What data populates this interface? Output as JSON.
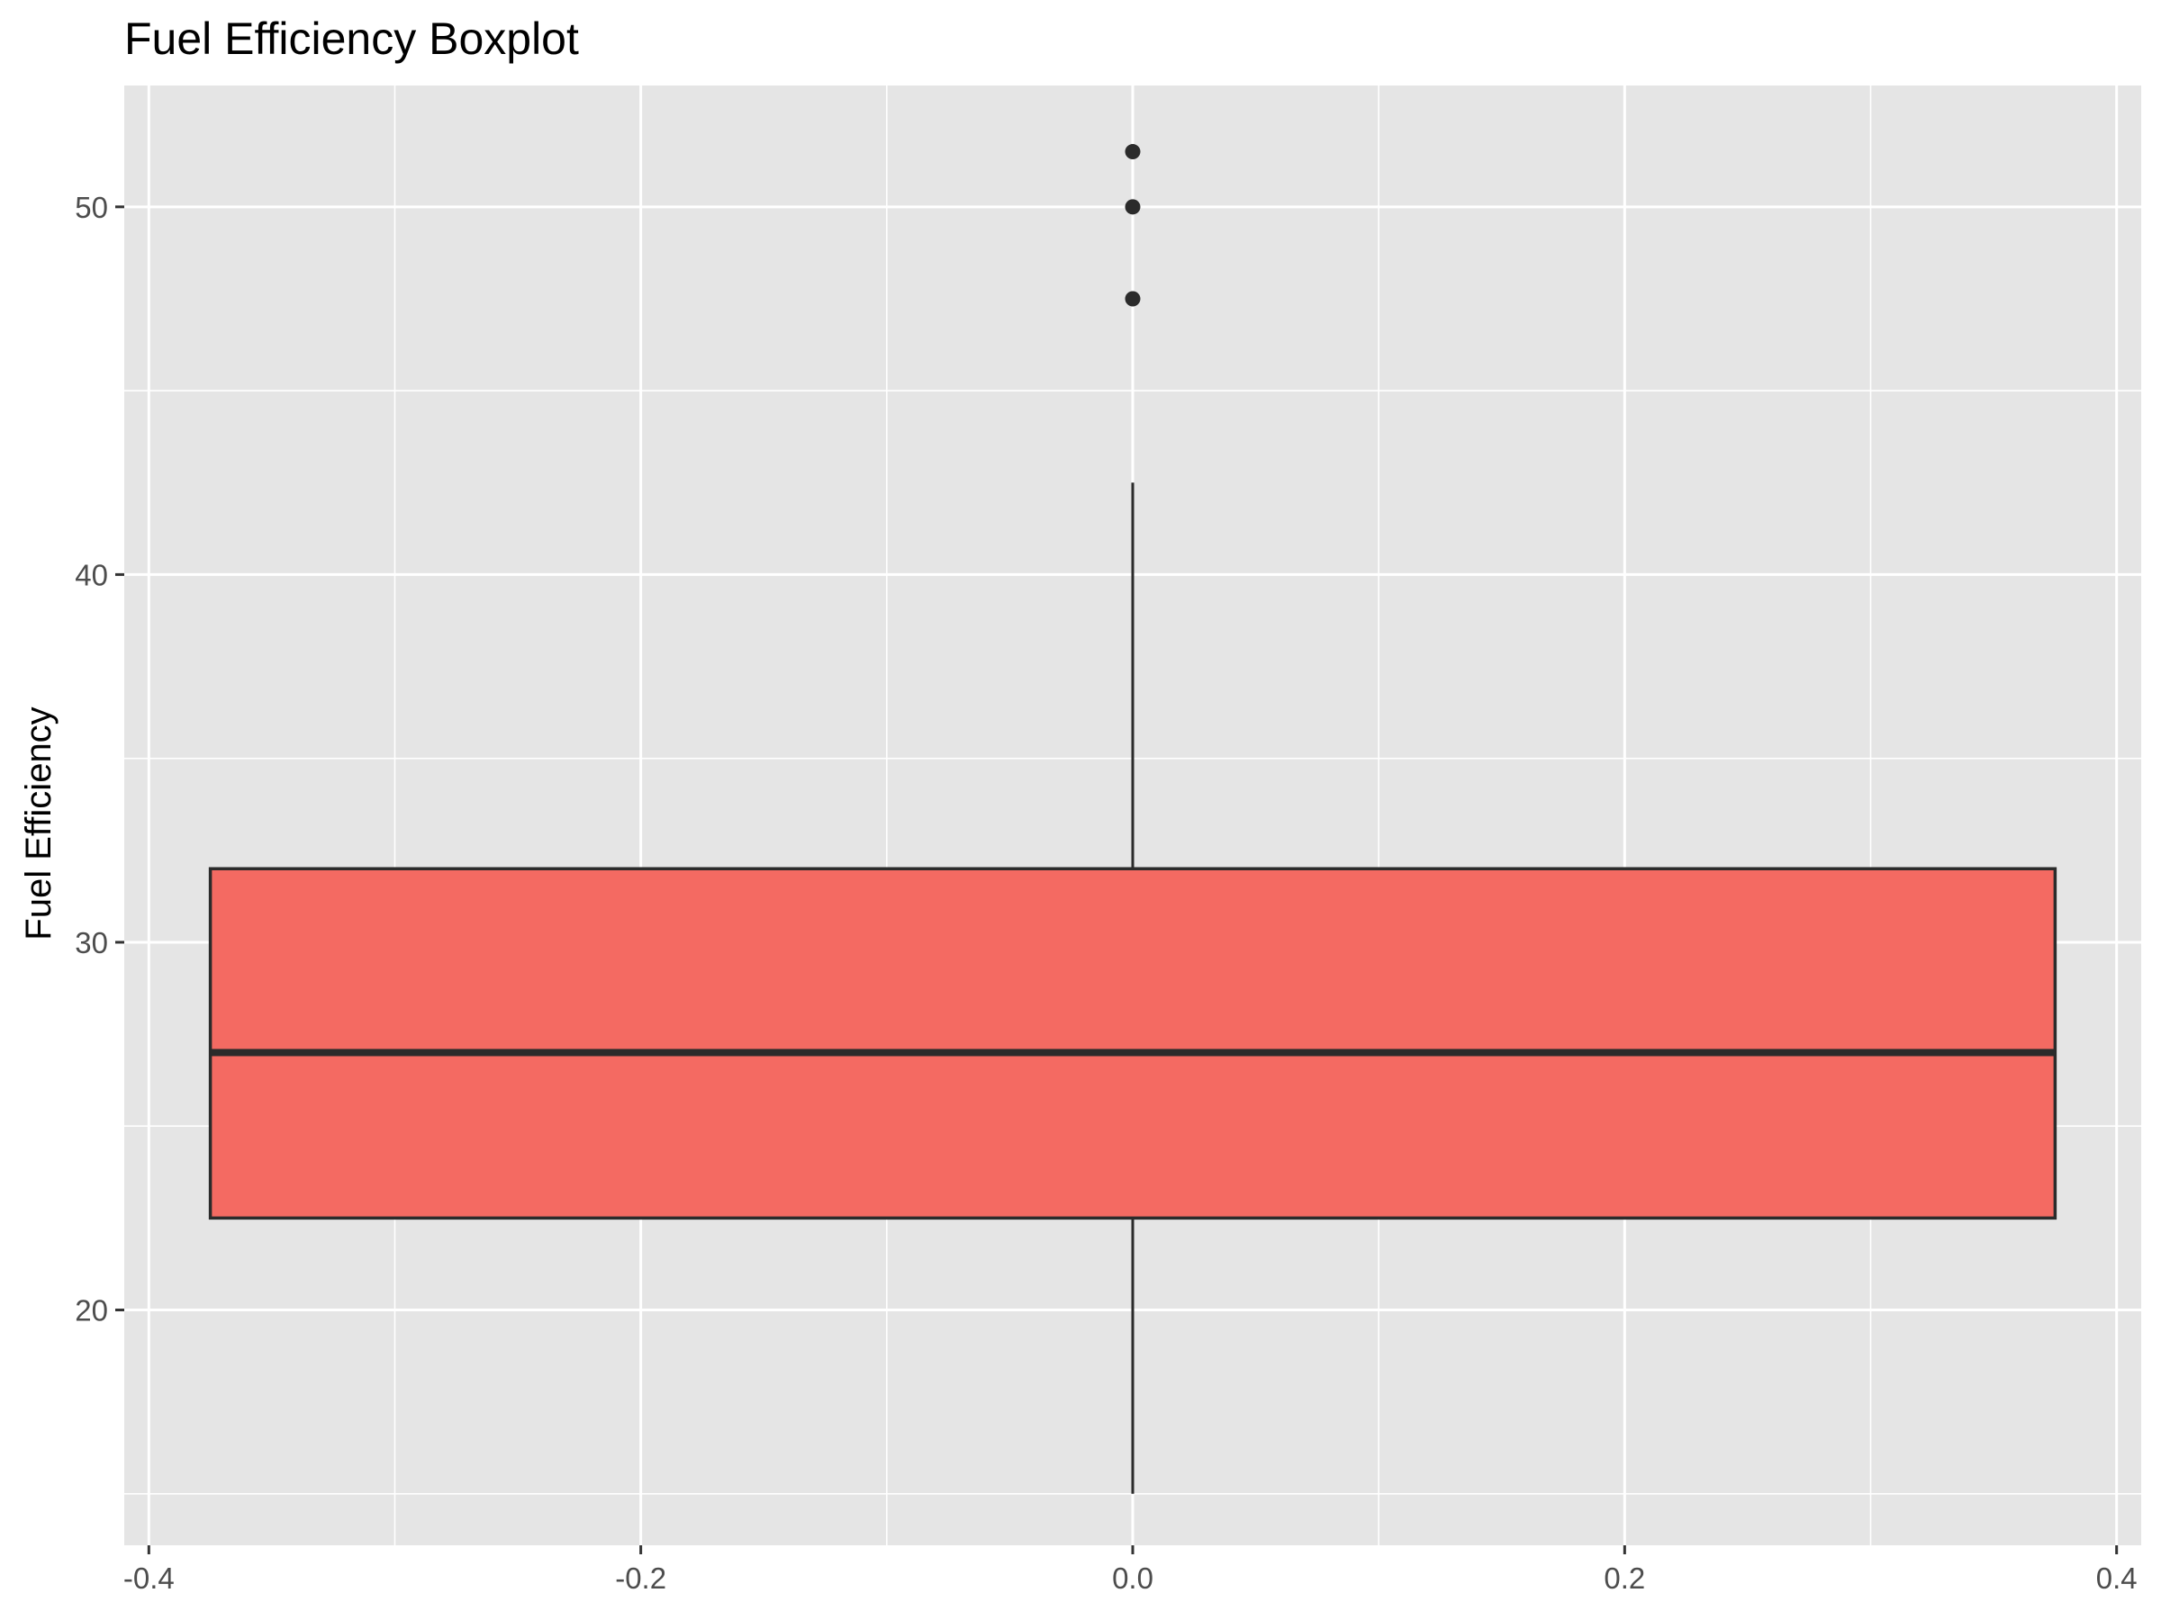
{
  "chart_data": {
    "type": "boxplot",
    "title": "Fuel Efficiency Boxplot",
    "xlabel": "",
    "ylabel": "Fuel Efficiency",
    "xlim": [
      -0.41,
      0.41
    ],
    "ylim": [
      13.6,
      53.3
    ],
    "x_ticks": [
      -0.4,
      -0.2,
      0.0,
      0.2,
      0.4
    ],
    "x_tick_labels": [
      "-0.4",
      "-0.2",
      "0.0",
      "0.2",
      "0.4"
    ],
    "y_ticks": [
      20,
      30,
      40,
      50
    ],
    "y_tick_labels": [
      "20",
      "30",
      "40",
      "50"
    ],
    "x_minor_ticks": [
      -0.3,
      -0.1,
      0.1,
      0.3
    ],
    "y_minor_ticks": [
      15,
      25,
      35,
      45
    ],
    "grid": true,
    "boxes": [
      {
        "x": 0.0,
        "box_half_width": 0.375,
        "whisker_low": 15,
        "q1": 22.5,
        "median": 27,
        "q3": 32,
        "whisker_high": 42.5,
        "outliers": [
          47.5,
          50,
          51.5
        ]
      }
    ],
    "colors": {
      "panel_background": "#e5e5e5",
      "grid": "#ffffff",
      "box_fill": "#f46a62",
      "box_line": "#2b2b2b",
      "tick": "#333333"
    }
  }
}
